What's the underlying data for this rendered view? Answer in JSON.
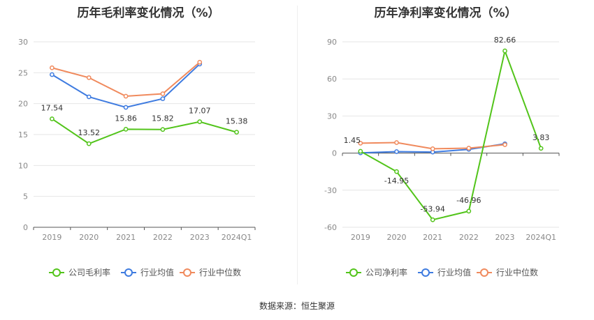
{
  "source": "数据来源：恒生聚源",
  "chart_data": [
    {
      "type": "line",
      "title": "历年毛利率变化情况（%）",
      "categories": [
        "2019",
        "2020",
        "2021",
        "2022",
        "2023",
        "2024Q1"
      ],
      "ylim": [
        0,
        30
      ],
      "yticks": [
        0,
        5,
        10,
        15,
        20,
        25,
        30
      ],
      "grid": true,
      "legend_position": "bottom",
      "series": [
        {
          "name": "公司毛利率",
          "color": "#52c41a",
          "values": [
            17.54,
            13.52,
            15.86,
            15.82,
            17.07,
            15.38
          ],
          "labels": [
            "17.54",
            "13.52",
            "15.86",
            "15.82",
            "17.07",
            "15.38"
          ]
        },
        {
          "name": "行业均值",
          "color": "#3e7be0",
          "values": [
            24.7,
            21.1,
            19.4,
            20.8,
            26.4,
            null
          ]
        },
        {
          "name": "行业中位数",
          "color": "#f08a5d",
          "values": [
            25.8,
            24.2,
            21.2,
            21.6,
            26.7,
            null
          ]
        }
      ]
    },
    {
      "type": "line",
      "title": "历年净利率变化情况（%）",
      "categories": [
        "2019",
        "2020",
        "2021",
        "2022",
        "2023",
        "2024Q1"
      ],
      "ylim": [
        -60,
        90
      ],
      "yticks": [
        -60,
        -30,
        0,
        30,
        60,
        90
      ],
      "grid": true,
      "legend_position": "bottom",
      "series": [
        {
          "name": "公司净利率",
          "color": "#52c41a",
          "values": [
            1.45,
            -14.95,
            -53.94,
            -46.96,
            82.66,
            3.83
          ],
          "labels": [
            "1.45",
            "-14.95",
            "-53.94",
            "-46.96",
            "82.66",
            "3.83"
          ]
        },
        {
          "name": "行业均值",
          "color": "#3e7be0",
          "values": [
            0.2,
            1.2,
            0.8,
            3.0,
            7.5,
            null
          ]
        },
        {
          "name": "行业中位数",
          "color": "#f08a5d",
          "values": [
            8.0,
            8.5,
            3.5,
            4.0,
            6.8,
            null
          ]
        }
      ]
    }
  ]
}
